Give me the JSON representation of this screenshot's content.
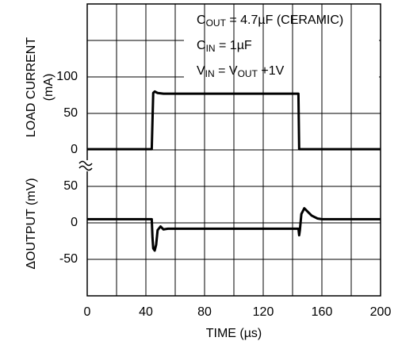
{
  "chart_data": [
    {
      "type": "line",
      "ylabel": [
        "LOAD CURRENT",
        "(mA)"
      ],
      "xlim": [
        0,
        200
      ],
      "ylim": [
        0,
        200
      ],
      "yticks": [
        0,
        50,
        100
      ],
      "grid": true,
      "series": [
        {
          "color": "#000000",
          "x": [
            0,
            44,
            45,
            46,
            48,
            52,
            144,
            144.5,
            200
          ],
          "values": [
            1,
            1,
            78,
            80,
            78,
            77,
            77,
            1,
            1
          ]
        }
      ],
      "annotations": [
        [
          "C",
          "OUT",
          " = 4.7µF (CERAMIC)"
        ],
        [
          "C",
          "IN",
          " = 1µF"
        ],
        [
          "V",
          "IN",
          " = V",
          "OUT",
          " +1V"
        ]
      ]
    },
    {
      "type": "line",
      "ylabel": [
        "ΔOUTPUT (mV)"
      ],
      "xlabel": "TIME (µs)",
      "xlim": [
        0,
        200
      ],
      "xticks": [
        0,
        40,
        80,
        120,
        160,
        200
      ],
      "ylim": [
        -100,
        100
      ],
      "yticks": [
        -50,
        0,
        50
      ],
      "grid": true,
      "series": [
        {
          "color": "#000000",
          "x": [
            0,
            44,
            44.5,
            45,
            46,
            47,
            48,
            50,
            52,
            55,
            60,
            144,
            144.5,
            145,
            146,
            148,
            150,
            153,
            157,
            160,
            200
          ],
          "values": [
            5,
            5,
            -20,
            -35,
            -38,
            -30,
            -10,
            -5,
            -9,
            -8,
            -8,
            -8,
            -17,
            -10,
            12,
            20,
            16,
            10,
            6,
            5,
            5
          ]
        }
      ]
    }
  ]
}
